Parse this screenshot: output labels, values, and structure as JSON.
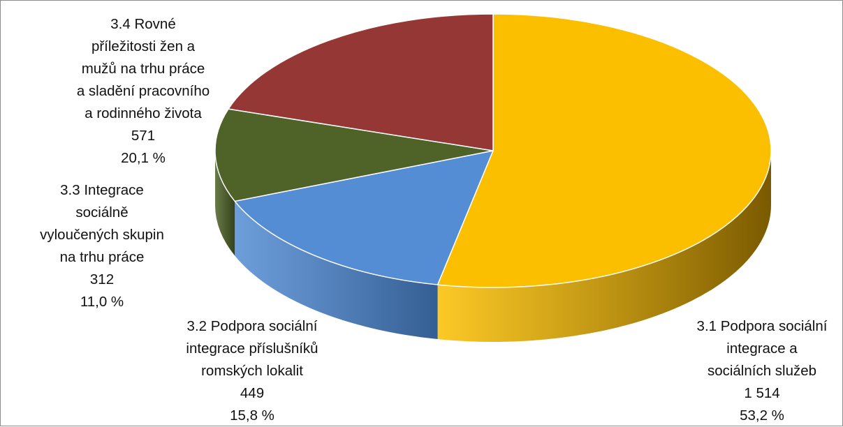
{
  "chart_data": {
    "type": "pie",
    "title": "",
    "slices": [
      {
        "id": "3.1",
        "label_lines": [
          "3.1 Podpora sociální",
          "integrace a",
          "sociálních služeb"
        ],
        "value": 1514,
        "value_text": "1 514",
        "percent_text": "53,2 %",
        "color": "#FBBF00",
        "side_color": "#7A5A00"
      },
      {
        "id": "3.2",
        "label_lines": [
          "3.2 Podpora sociální",
          "integrace příslušníků",
          "romských lokalit"
        ],
        "value": 449,
        "value_text": "449",
        "percent_text": "15,8 %",
        "color": "#548DD4",
        "side_color": "#345E93"
      },
      {
        "id": "3.3",
        "label_lines": [
          "3.3 Integrace",
          "sociálně",
          "vyloučených skupin",
          "na trhu práce"
        ],
        "value": 312,
        "value_text": "312",
        "percent_text": "11,0 %",
        "color": "#4F6228",
        "side_color": "#34411A"
      },
      {
        "id": "3.4",
        "label_lines": [
          "3.4 Rovné",
          "příležitosti žen a",
          "mužů na trhu práce",
          "a sladění pracovního",
          "a rodinného života"
        ],
        "value": 571,
        "value_text": "571",
        "percent_text": "20,1 %",
        "color": "#953735",
        "side_color": "#632322"
      }
    ]
  }
}
